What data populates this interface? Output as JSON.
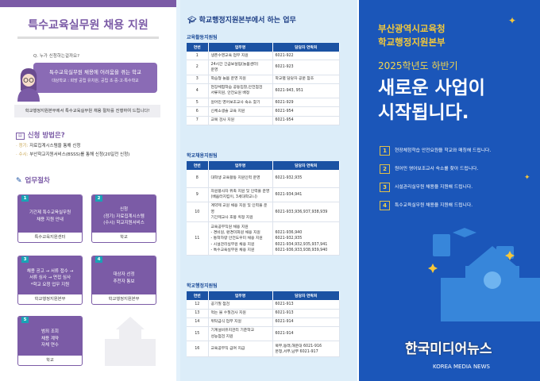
{
  "left": {
    "title": "특수교육실무원 채용 지원",
    "question": "Q. 누가 신청하는걸까요?",
    "bubble_line1": "특수교육실무원 채용에 어려움을 겪는 학교",
    "bubble_line2": "대상학교 : 희망 공립 유치원, 공립 초·중·고·특수학교",
    "notice": "학교행정지원본부에서 특수교육실무원 채용 절차를 진행하여 드립니다!",
    "method_title": "신청 방법은?",
    "methods": [
      {
        "k": "· 정기:",
        "v": " 자료집계시스템을 통해 신청"
      },
      {
        "k": "· 수시:",
        "v": " 부산학교지원서비스(BSSS)를 통해 신청(20일전 신청)"
      }
    ],
    "process_title": "업무절차",
    "steps": [
      {
        "num": "1",
        "text": "기간제 특수교육실무원\n채용 지원 안내",
        "owner": "특수교육지원센터"
      },
      {
        "num": "2",
        "text": "신청\n(정기) 자료집계시스템\n(수시) 학교지원서비스",
        "owner": "학교"
      },
      {
        "num": "3",
        "text": "채용 공고 → 서류 접수 →\n서류 심사 → 면접 심사\n*학교 요청 업무 지원",
        "owner": "학교행정지원본부"
      },
      {
        "num": "4",
        "text": "대상자 선정\n추천자 통보",
        "owner": "학교행정지원본부"
      },
      {
        "num": "5",
        "text": "범죄 조회\n채용 계약\n자체 연수",
        "owner": "학교"
      }
    ]
  },
  "middle": {
    "title": "학교행정지원본부에서 하는 업무",
    "headers": [
      "연번",
      "업무명",
      "담당자 연락처"
    ],
    "tables": [
      {
        "label": "교육활동지원팀",
        "rows": [
          [
            "1",
            "생존수영교육 업무 지원",
            "6021-922"
          ],
          [
            "2",
            "24시간 긴급보살핌(늘봄센터)\n운영",
            "6021-923"
          ],
          [
            "3",
            "학습형 늘봄 운영 지원",
            "학교별 담당자 공문 참조"
          ],
          [
            "4",
            "현장체험학습 공동입찰,안전점검\n서류지원, 안전요원 배정",
            "6021-943, 951"
          ],
          [
            "5",
            "원어민 영어보조교사 숙소 찾기",
            "6021-929"
          ],
          [
            "6",
            "신체소생술 교육 지원",
            "6021-954"
          ],
          [
            "7",
            "교복 검사 지원",
            "6021-954"
          ]
        ]
      },
      {
        "label": "학교채용지원팀",
        "rows": [
          [
            "8",
            "대학생 교육활동 지원인력 운영",
            "6021-932,935"
          ],
          [
            "9",
            "자원봉사자 위촉 지원 및 인력풀 운영\n(배움터지킴이, 3세대학교니)",
            "6021-934,941"
          ],
          [
            "10",
            "계약제 교원 채용 지원 및 인력풀 운영\n기간제교사 호봉 획정 지원",
            "6021-933,936,937,938,939"
          ],
          [
            "11",
            "교육공무직원 채용 지원\n- 경비원, 환경미화원 채용 지원\n- 통학차량 안전도우미 채용 지원\n- 시설관리실무원 채용 지원\n- 특수교육실무원 채용 지원",
            "\n6021-936,940\n6021-932,935\n6021-934,932,935,937,941\n6021-936,933,938,939,940"
          ]
        ]
      },
      {
        "label": "학교행정지원팀",
        "rows": [
          [
            "12",
            "공기질 점검",
            "6021-913"
          ],
          [
            "13",
            "먹는 물 수질검사 지원",
            "6021-913"
          ],
          [
            "14",
            "위탁급식 업무 지원",
            "6021-914"
          ],
          [
            "15",
            "기계설비유지관리 기준학교\n성능점검 지원",
            "6021-914"
          ],
          [
            "16",
            "교육공무직 급여 지급",
            "북부,동래,해운대 6021-916\n본청,서부,남부 6021-917"
          ]
        ]
      }
    ]
  },
  "right": {
    "org_line1": "부산광역시교육청",
    "org_line2": "학교행정지원본부",
    "subtitle": "2025학년도 하반기",
    "headline1": "새로운 사업이",
    "headline2": "시작됩니다.",
    "items": [
      {
        "num": "1",
        "text": "현장체험학습 안전요원을 학교와 매칭해 드립니다."
      },
      {
        "num": "2",
        "text": "원어민 영어보조교사 숙소를 찾아 드립니다."
      },
      {
        "num": "3",
        "text": "시설관리실무원 채용을 지원해 드립니다."
      },
      {
        "num": "4",
        "text": "특수교육실무원 채용을 지원해 드립니다."
      }
    ],
    "watermark": "한국미디어뉴스",
    "watermark_en": "KOREA MEDIA NEWS"
  },
  "colors": {
    "purple": "#7b5ba6",
    "navy": "#1b52a3",
    "blue_bg": "#1b56b9",
    "light_blue": "#dcedf9",
    "yellow": "#f4c93a",
    "teal": "#1aa3b5"
  }
}
